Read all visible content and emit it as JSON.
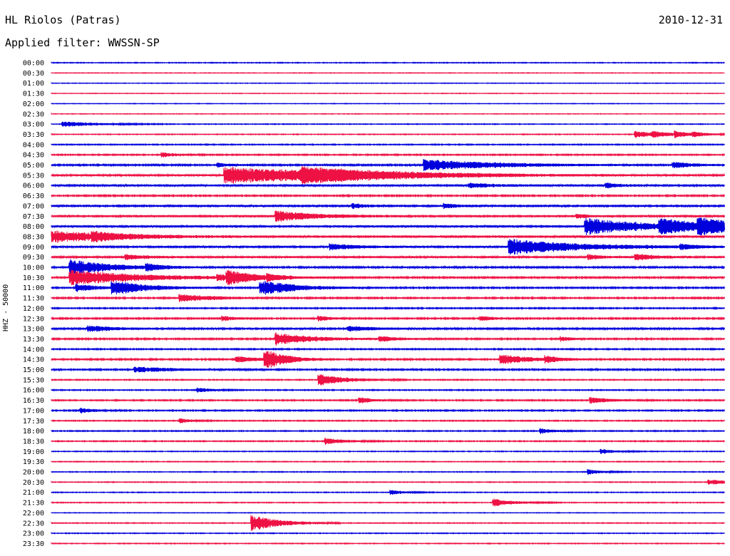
{
  "header": {
    "station": "HL Riolos (Patras)",
    "date": "2010-12-31",
    "filter": "Applied filter: WWSSN-SP"
  },
  "y_label": "HHZ - 50000",
  "colors": {
    "odd_trace": "#0000dd",
    "even_trace": "#ee1144"
  },
  "chart_data": {
    "type": "line",
    "title": "HL Riolos (Patras)",
    "subtitle": "Applied filter: WWSSN-SP",
    "ylabel": "HHZ - 50000",
    "rows": [
      "00:00",
      "00:30",
      "01:00",
      "01:30",
      "02:00",
      "02:30",
      "03:00",
      "03:30",
      "04:00",
      "04:30",
      "05:00",
      "05:30",
      "06:00",
      "06:30",
      "07:00",
      "07:30",
      "08:00",
      "08:30",
      "09:00",
      "09:30",
      "10:00",
      "10:30",
      "11:00",
      "11:30",
      "12:00",
      "12:30",
      "13:00",
      "13:30",
      "14:00",
      "14:30",
      "15:00",
      "15:30",
      "16:00",
      "16:30",
      "17:00",
      "17:30",
      "18:00",
      "18:30",
      "19:00",
      "19:30",
      "20:00",
      "20:30",
      "21:00",
      "21:30",
      "22:00",
      "22:30",
      "23:00",
      "23:30"
    ],
    "x_range_minutes": [
      0,
      30
    ],
    "line_colors": [
      "#0000dd",
      "#ee1144"
    ],
    "noise": [
      0.4,
      0.3,
      0.3,
      0.3,
      0.3,
      0.3,
      0.4,
      0.4,
      0.5,
      0.6,
      0.8,
      0.9,
      1.0,
      0.7,
      1.1,
      1.0,
      1.1,
      1.2,
      0.9,
      1.0,
      0.8,
      0.8,
      0.7,
      0.7,
      0.6,
      0.7,
      0.8,
      0.7,
      0.6,
      0.7,
      0.7,
      0.5,
      0.5,
      0.6,
      0.6,
      0.5,
      0.5,
      0.5,
      0.4,
      0.4,
      0.4,
      0.4,
      0.4,
      0.4,
      0.3,
      0.4,
      0.4,
      0.4
    ],
    "events": [
      [],
      [],
      [],
      [],
      [],
      [],
      [
        [
          0.5,
          5,
          0.4
        ]
      ],
      [
        [
          26.0,
          4,
          0.5
        ],
        [
          26.8,
          2,
          0.3
        ],
        [
          27.8,
          2,
          0.4
        ],
        [
          28.6,
          2,
          0.3
        ]
      ],
      [],
      [
        [
          4.9,
          2,
          0.4
        ]
      ],
      [
        [
          7.4,
          2,
          0.3
        ],
        [
          16.6,
          10,
          0.9
        ],
        [
          27.7,
          3,
          0.5
        ]
      ],
      [
        [
          7.7,
          18,
          1.3
        ],
        [
          11.1,
          10,
          0.9
        ]
      ],
      [
        [
          18.6,
          3,
          0.4
        ],
        [
          24.7,
          2,
          0.4
        ]
      ],
      [],
      [
        [
          13.4,
          1.5,
          0.4
        ],
        [
          17.5,
          1.5,
          0.4
        ]
      ],
      [
        [
          10.0,
          6,
          0.8
        ],
        [
          23.4,
          1.5,
          0.4
        ]
      ],
      [
        [
          23.8,
          8,
          1.3
        ],
        [
          27.1,
          6,
          1.0
        ],
        [
          28.8,
          6,
          1.0
        ]
      ],
      [
        [
          0.0,
          8,
          0.9
        ],
        [
          1.8,
          4,
          0.5
        ]
      ],
      [
        [
          12.4,
          4,
          0.5
        ],
        [
          20.4,
          10,
          1.2
        ],
        [
          28.0,
          2,
          0.4
        ]
      ],
      [
        [
          3.3,
          3,
          0.4
        ],
        [
          23.9,
          2,
          0.4
        ],
        [
          26.0,
          3,
          0.5
        ]
      ],
      [
        [
          0.8,
          6,
          1.2
        ],
        [
          4.2,
          2,
          0.5
        ]
      ],
      [
        [
          0.8,
          10,
          1.2
        ],
        [
          7.4,
          2,
          0.4
        ],
        [
          7.8,
          5,
          0.9
        ],
        [
          9.6,
          1.5,
          0.4
        ]
      ],
      [
        [
          1.1,
          3,
          0.6
        ],
        [
          2.7,
          5,
          1.1
        ],
        [
          9.3,
          5,
          1.2
        ]
      ],
      [
        [
          5.7,
          5,
          0.6
        ]
      ],
      [],
      [
        [
          7.6,
          2,
          0.4
        ],
        [
          11.9,
          2,
          0.4
        ],
        [
          19.1,
          2,
          0.4
        ]
      ],
      [
        [
          1.6,
          4,
          0.5
        ],
        [
          13.2,
          4,
          0.4
        ]
      ],
      [
        [
          10.0,
          5,
          1.0
        ],
        [
          14.6,
          3,
          0.4
        ],
        [
          22.7,
          1.5,
          0.4
        ]
      ],
      [],
      [
        [
          9.5,
          3,
          1.6
        ],
        [
          8.2,
          3,
          0.5
        ],
        [
          20.0,
          4,
          0.8
        ],
        [
          22.0,
          2,
          0.5
        ]
      ],
      [
        [
          3.7,
          6,
          0.4
        ]
      ],
      [
        [
          11.9,
          4,
          0.9
        ]
      ],
      [
        [
          6.5,
          2,
          0.4
        ]
      ],
      [
        [
          13.7,
          2,
          0.5
        ],
        [
          24.0,
          3,
          0.5
        ]
      ],
      [
        [
          1.3,
          2,
          0.4
        ]
      ],
      [
        [
          5.7,
          1.5,
          0.4
        ]
      ],
      [
        [
          21.8,
          2,
          0.4
        ]
      ],
      [
        [
          12.2,
          3,
          0.5
        ]
      ],
      [
        [
          24.5,
          2,
          0.4
        ]
      ],
      [],
      [
        [
          23.9,
          2,
          0.4
        ]
      ],
      [
        [
          29.3,
          3,
          0.4
        ]
      ],
      [
        [
          15.1,
          2,
          0.4
        ]
      ],
      [
        [
          19.7,
          3,
          0.6
        ]
      ],
      [],
      [
        [
          8.9,
          4,
          1.3
        ]
      ],
      [],
      []
    ]
  }
}
